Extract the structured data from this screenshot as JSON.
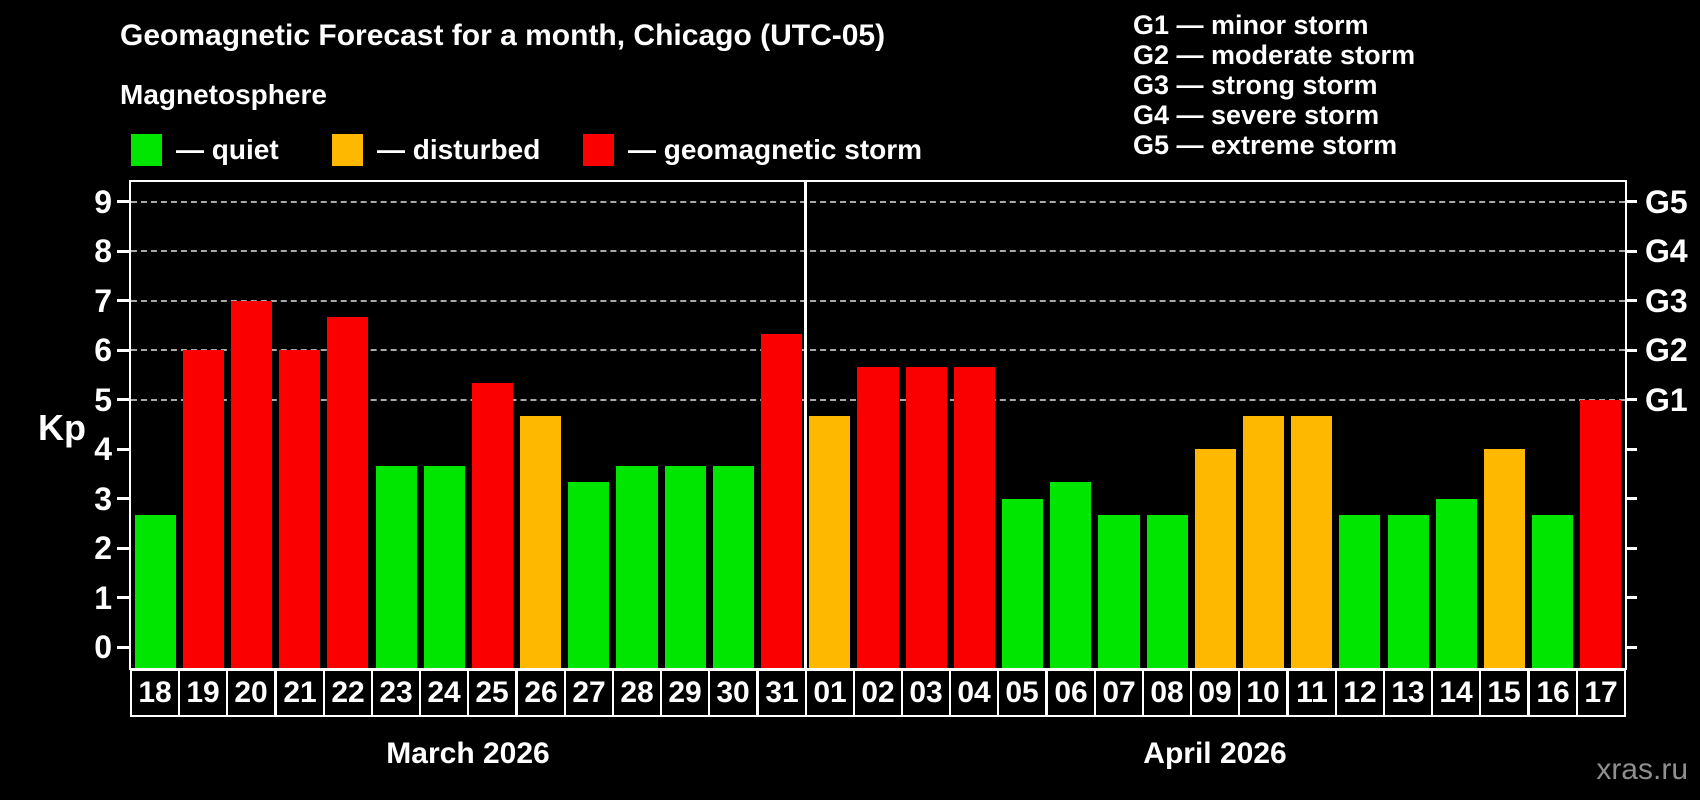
{
  "header": {
    "title": "Geomagnetic Forecast for a month, Chicago (UTC-05)",
    "subtitle": "Magnetosphere",
    "legend": [
      {
        "status": "quiet",
        "label": "— quiet",
        "color": "#00e600"
      },
      {
        "status": "disturbed",
        "label": "— disturbed",
        "color": "#ffb800"
      },
      {
        "status": "storm",
        "label": "— geomagnetic storm",
        "color": "#fb0000"
      }
    ],
    "g_scale_legend": [
      "G1 — minor storm",
      "G2 — moderate storm",
      "G3 — strong storm",
      "G4 — severe storm",
      "G5 — extreme storm"
    ]
  },
  "chart_data": {
    "type": "bar",
    "title": "Geomagnetic Forecast for a month, Chicago (UTC-05)",
    "ylabel": "Kp",
    "y_axis": {
      "label": "Kp",
      "min": 0,
      "max": 9,
      "ticks": [
        0,
        1,
        2,
        3,
        4,
        5,
        6,
        7,
        8,
        9
      ]
    },
    "right_axis": {
      "labels": [
        {
          "level": "G1",
          "kp": 5
        },
        {
          "level": "G2",
          "kp": 6
        },
        {
          "level": "G3",
          "kp": 7
        },
        {
          "level": "G4",
          "kp": 8
        },
        {
          "level": "G5",
          "kp": 9
        }
      ]
    },
    "gridlines_kp": [
      5,
      6,
      7,
      8,
      9
    ],
    "grid": "dashed horizontal at G-storm levels only",
    "status_colors": {
      "quiet": "#00e600",
      "disturbed": "#ffb800",
      "storm": "#fb0000"
    },
    "months": [
      {
        "label": "March 2026",
        "days": 14
      },
      {
        "label": "April 2026",
        "days": 17
      }
    ],
    "bars": [
      {
        "date": "18",
        "kp": 2.67,
        "status": "quiet"
      },
      {
        "date": "19",
        "kp": 6.0,
        "status": "storm"
      },
      {
        "date": "20",
        "kp": 7.0,
        "status": "storm"
      },
      {
        "date": "21",
        "kp": 6.0,
        "status": "storm"
      },
      {
        "date": "22",
        "kp": 6.67,
        "status": "storm"
      },
      {
        "date": "23",
        "kp": 3.67,
        "status": "quiet"
      },
      {
        "date": "24",
        "kp": 3.67,
        "status": "quiet"
      },
      {
        "date": "25",
        "kp": 5.33,
        "status": "storm"
      },
      {
        "date": "26",
        "kp": 4.67,
        "status": "disturbed"
      },
      {
        "date": "27",
        "kp": 3.33,
        "status": "quiet"
      },
      {
        "date": "28",
        "kp": 3.67,
        "status": "quiet"
      },
      {
        "date": "29",
        "kp": 3.67,
        "status": "quiet"
      },
      {
        "date": "30",
        "kp": 3.67,
        "status": "quiet"
      },
      {
        "date": "31",
        "kp": 6.33,
        "status": "storm"
      },
      {
        "date": "01",
        "kp": 4.67,
        "status": "disturbed"
      },
      {
        "date": "02",
        "kp": 5.67,
        "status": "storm"
      },
      {
        "date": "03",
        "kp": 5.67,
        "status": "storm"
      },
      {
        "date": "04",
        "kp": 5.67,
        "status": "storm"
      },
      {
        "date": "05",
        "kp": 3.0,
        "status": "quiet"
      },
      {
        "date": "06",
        "kp": 3.33,
        "status": "quiet"
      },
      {
        "date": "07",
        "kp": 2.67,
        "status": "quiet"
      },
      {
        "date": "08",
        "kp": 2.67,
        "status": "quiet"
      },
      {
        "date": "09",
        "kp": 4.0,
        "status": "disturbed"
      },
      {
        "date": "10",
        "kp": 4.67,
        "status": "disturbed"
      },
      {
        "date": "11",
        "kp": 4.67,
        "status": "disturbed"
      },
      {
        "date": "12",
        "kp": 2.67,
        "status": "quiet"
      },
      {
        "date": "13",
        "kp": 2.67,
        "status": "quiet"
      },
      {
        "date": "14",
        "kp": 3.0,
        "status": "quiet"
      },
      {
        "date": "15",
        "kp": 4.0,
        "status": "disturbed"
      },
      {
        "date": "16",
        "kp": 2.67,
        "status": "quiet"
      },
      {
        "date": "17",
        "kp": 5.0,
        "status": "storm"
      }
    ]
  },
  "watermark": "xras.ru"
}
